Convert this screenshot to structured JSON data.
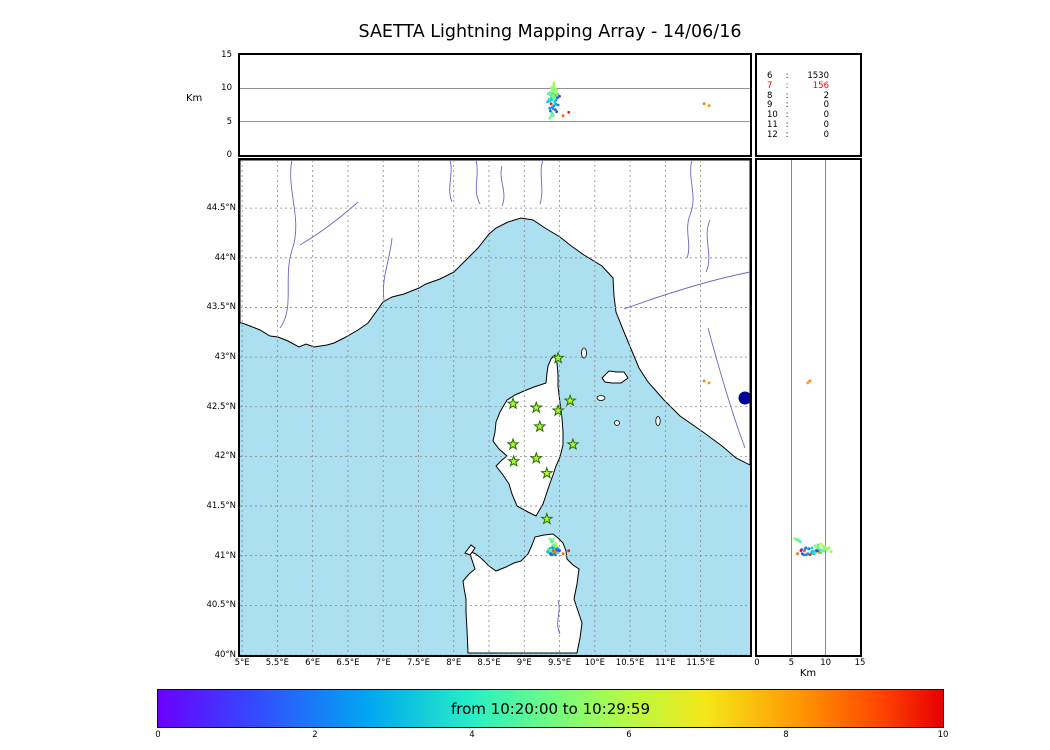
{
  "title": "SAETTA Lightning Mapping Array - 14/06/16",
  "colors": {
    "sea": "#ace0f0",
    "land": "#ffffff",
    "coast": "#000000",
    "river": "#6f63c8",
    "lake": "#000099",
    "grid": "#888888",
    "panel_gridline": "#555555",
    "station_fill": "#b0f832",
    "station_edge": "#256e00",
    "highlight_red": "#ff0000"
  },
  "top_panel": {
    "ylabel": "Km",
    "yticks": [
      "0",
      "5",
      "10",
      "15"
    ],
    "ytick_values": [
      0,
      5,
      10,
      15
    ],
    "ylim": [
      0,
      15
    ],
    "gridlines_km": [
      5,
      10
    ]
  },
  "stats_panel": {
    "rows": [
      {
        "label": "6",
        "value": "1530",
        "color": "#000000"
      },
      {
        "label": "7",
        "value": "156",
        "color": "#ff0000"
      },
      {
        "label": "8",
        "value": "2",
        "color": "#000000"
      },
      {
        "label": "9",
        "value": "0",
        "color": "#000000"
      },
      {
        "label": "10",
        "value": "0",
        "color": "#000000"
      },
      {
        "label": "11",
        "value": "0",
        "color": "#000000"
      },
      {
        "label": "12",
        "value": "0",
        "color": "#000000"
      }
    ]
  },
  "map_panel": {
    "lat_ticks": [
      "44.5°N",
      "44°N",
      "43.5°N",
      "43°N",
      "42.5°N",
      "42°N",
      "41.5°N",
      "41°N",
      "40.5°N",
      "40°N"
    ],
    "lat_values": [
      44.5,
      44,
      43.5,
      43,
      42.5,
      42,
      41.5,
      41,
      40.5,
      40
    ],
    "lon_ticks": [
      "5°E",
      "5.5°E",
      "6°E",
      "6.5°E",
      "7°E",
      "7.5°E",
      "8°E",
      "8.5°E",
      "9°E",
      "9.5°E",
      "10°E",
      "10.5°E",
      "11°E",
      "11.5°E"
    ],
    "lon_values": [
      5,
      5.5,
      6,
      6.5,
      7,
      7.5,
      8,
      8.5,
      9,
      9.5,
      10,
      10.5,
      11,
      11.5
    ]
  },
  "right_panel": {
    "xlabel": "Km",
    "xticks": [
      "0",
      "5",
      "10",
      "15"
    ],
    "xtick_values": [
      0,
      5,
      10,
      15
    ],
    "xlim": [
      0,
      15
    ],
    "gridlines_km": [
      5,
      10
    ]
  },
  "colorbar": {
    "label": "from 10:20:00 to 10:29:59",
    "ticks": [
      "0",
      "2",
      "4",
      "6",
      "8",
      "10"
    ],
    "tick_values": [
      0,
      2,
      4,
      6,
      8,
      10
    ],
    "range": [
      0,
      10
    ],
    "stops": [
      [
        0,
        "#6a00ff"
      ],
      [
        0.12,
        "#3548ff"
      ],
      [
        0.27,
        "#00a8f0"
      ],
      [
        0.4,
        "#27eec6"
      ],
      [
        0.5,
        "#70fb82"
      ],
      [
        0.6,
        "#b8f943"
      ],
      [
        0.7,
        "#f5e618"
      ],
      [
        0.82,
        "#ff9500"
      ],
      [
        0.92,
        "#ff4500"
      ],
      [
        1,
        "#e60000"
      ]
    ]
  },
  "chart_data": {
    "type": "scatter",
    "title": "SAETTA Lightning Mapping Array - 14/06/16",
    "time_window": "from 10:20:00 to 10:29:59",
    "color_scale": {
      "meaning": "minutes since 10:20:00",
      "range": [
        0,
        10
      ]
    },
    "panels": [
      {
        "name": "altitude_vs_longitude",
        "xlim": [
          4.97,
          12.2
        ],
        "ylim": [
          0,
          15
        ],
        "ylabel": "Km"
      },
      {
        "name": "map_latitude_vs_longitude",
        "xlim": [
          4.97,
          12.2
        ],
        "ylim": [
          40,
          44.985
        ]
      },
      {
        "name": "altitude_vs_latitude",
        "xlim": [
          0,
          15
        ],
        "ylim": [
          40,
          44.985
        ],
        "xlabel": "Km"
      }
    ],
    "station_count_histogram": {
      "6": 1530,
      "7": 156,
      "8": 2,
      "9": 0,
      "10": 0,
      "11": 0,
      "12": 0
    },
    "stations_lonlat": [
      [
        9.48,
        42.99
      ],
      [
        8.84,
        42.53
      ],
      [
        9.17,
        42.49
      ],
      [
        9.48,
        42.46
      ],
      [
        9.65,
        42.56
      ],
      [
        9.22,
        42.3
      ],
      [
        8.84,
        42.12
      ],
      [
        9.69,
        42.12
      ],
      [
        8.85,
        41.95
      ],
      [
        9.17,
        41.98
      ],
      [
        9.32,
        41.83
      ],
      [
        9.32,
        41.37
      ]
    ],
    "points_lon_lat_altkm_tmin": [
      [
        9.42,
        41.05,
        9.8,
        4.5
      ],
      [
        9.4,
        41.04,
        9.2,
        4.2
      ],
      [
        9.44,
        41.06,
        8.8,
        5.0
      ],
      [
        9.38,
        41.03,
        8.5,
        3.8
      ],
      [
        9.41,
        41.07,
        10.2,
        5.5
      ],
      [
        9.43,
        41.02,
        7.9,
        3.0
      ],
      [
        9.39,
        41.05,
        9.5,
        4.8
      ],
      [
        9.45,
        41.04,
        8.2,
        2.5
      ],
      [
        9.37,
        41.06,
        9.0,
        5.2
      ],
      [
        9.42,
        41.08,
        10.5,
        5.8
      ],
      [
        9.4,
        41.01,
        7.2,
        2.0
      ],
      [
        9.44,
        41.09,
        9.9,
        6.0
      ],
      [
        9.36,
        41.04,
        8.1,
        3.5
      ],
      [
        9.47,
        41.05,
        8.6,
        1.5
      ],
      [
        9.41,
        41.03,
        9.3,
        4.4
      ],
      [
        9.43,
        41.06,
        10.0,
        5.3
      ],
      [
        9.38,
        41.08,
        8.9,
        4.7
      ],
      [
        9.4,
        41.06,
        9.7,
        5.0
      ],
      [
        9.45,
        41.07,
        7.6,
        2.8
      ],
      [
        9.39,
        41.02,
        8.3,
        3.3
      ],
      [
        9.42,
        41.04,
        10.8,
        5.7
      ],
      [
        9.36,
        41.07,
        7.0,
        2.2
      ],
      [
        9.48,
        41.03,
        9.1,
        4.0
      ],
      [
        9.41,
        41.09,
        8.7,
        5.5
      ],
      [
        9.44,
        41.01,
        6.8,
        1.8
      ],
      [
        9.37,
        41.05,
        9.4,
        4.9
      ],
      [
        9.43,
        41.08,
        8.0,
        3.6
      ],
      [
        9.4,
        41.1,
        9.6,
        5.8
      ],
      [
        9.46,
        41.06,
        6.5,
        1.2
      ],
      [
        9.35,
        41.03,
        8.4,
        4.1
      ],
      [
        9.42,
        41.02,
        7.4,
        2.6
      ],
      [
        9.39,
        41.07,
        10.1,
        5.4
      ],
      [
        9.41,
        41.05,
        6.9,
        9.0
      ],
      [
        9.44,
        41.04,
        9.0,
        8.5
      ],
      [
        9.38,
        41.01,
        7.7,
        9.5
      ],
      [
        9.5,
        41.05,
        8.8,
        1.0
      ],
      [
        9.34,
        41.06,
        9.2,
        4.6
      ],
      [
        9.43,
        41.1,
        8.5,
        5.2
      ],
      [
        9.4,
        41.08,
        7.1,
        2.4
      ],
      [
        9.46,
        41.09,
        9.8,
        5.6
      ],
      [
        9.37,
        41.02,
        6.6,
        1.6
      ],
      [
        9.45,
        41.12,
        9.3,
        6.0
      ],
      [
        9.33,
        41.04,
        8.0,
        3.2
      ],
      [
        9.48,
        41.07,
        7.5,
        2.1
      ],
      [
        9.42,
        41.11,
        8.9,
        4.8
      ],
      [
        9.38,
        41.16,
        5.8,
        5.0
      ],
      [
        9.4,
        41.15,
        6.1,
        4.7
      ],
      [
        9.36,
        41.17,
        5.5,
        5.2
      ],
      [
        9.39,
        41.14,
        6.3,
        4.4
      ],
      [
        9.41,
        41.16,
        5.9,
        4.9
      ],
      [
        11.55,
        42.76,
        7.7,
        8.5
      ],
      [
        11.62,
        42.74,
        7.4,
        8.2
      ],
      [
        9.63,
        41.05,
        6.4,
        9.7
      ],
      [
        9.55,
        41.02,
        5.9,
        8.8
      ]
    ]
  }
}
